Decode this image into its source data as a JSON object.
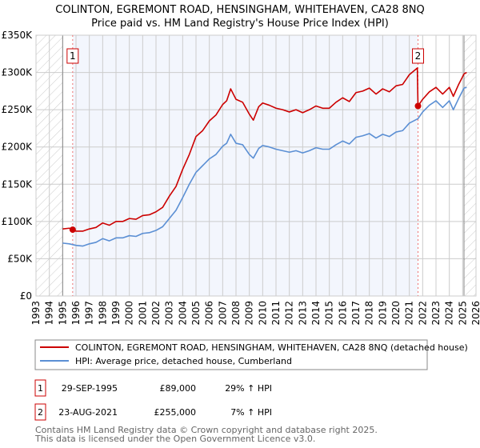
{
  "chart_data": {
    "type": "line",
    "title": "COLINTON, EGREMONT ROAD, HENSINGHAM, WHITEHAVEN, CA28 8NQ",
    "subtitle": "Price paid vs. HM Land Registry's House Price Index (HPI)",
    "xlabel": "",
    "ylabel": "",
    "xlim": [
      1993,
      2026
    ],
    "ylim": [
      0,
      350000
    ],
    "x_ticks": [
      "1993",
      "1994",
      "1995",
      "1996",
      "1997",
      "1998",
      "1999",
      "2000",
      "2001",
      "2002",
      "2003",
      "2004",
      "2005",
      "2006",
      "2007",
      "2008",
      "2009",
      "2010",
      "2011",
      "2012",
      "2013",
      "2014",
      "2015",
      "2016",
      "2017",
      "2018",
      "2019",
      "2020",
      "2021",
      "2022",
      "2023",
      "2024",
      "2025",
      "2026"
    ],
    "y_ticks": [
      {
        "value": 0,
        "label": "£0"
      },
      {
        "value": 50000,
        "label": "£50K"
      },
      {
        "value": 100000,
        "label": "£100K"
      },
      {
        "value": 150000,
        "label": "£150K"
      },
      {
        "value": 200000,
        "label": "£200K"
      },
      {
        "value": 250000,
        "label": "£250K"
      },
      {
        "value": 300000,
        "label": "£300K"
      },
      {
        "value": 350000,
        "label": "£350K"
      }
    ],
    "grid": true,
    "hatched_ranges": [
      [
        1993,
        1995
      ],
      [
        2025.1,
        2026
      ]
    ],
    "shaded_range": [
      1995.75,
      2021.65
    ],
    "series": [
      {
        "name": "COLINTON, EGREMONT ROAD, HENSINGHAM, WHITEHAVEN, CA28 8NQ (detached house)",
        "color": "#cc0000",
        "x": [
          1995,
          1995.5,
          1995.75,
          1996,
          1996.5,
          1997,
          1997.5,
          1998,
          1998.5,
          1999,
          1999.5,
          2000,
          2000.5,
          2001,
          2001.5,
          2002,
          2002.5,
          2003,
          2003.5,
          2004,
          2004.5,
          2005,
          2005.5,
          2006,
          2006.5,
          2007,
          2007.3,
          2007.6,
          2008,
          2008.5,
          2009,
          2009.3,
          2009.7,
          2010,
          2010.5,
          2011,
          2011.5,
          2012,
          2012.5,
          2013,
          2013.5,
          2014,
          2014.5,
          2015,
          2015.5,
          2016,
          2016.5,
          2017,
          2017.5,
          2018,
          2018.5,
          2019,
          2019.5,
          2020,
          2020.5,
          2021,
          2021.6,
          2021.65,
          2022,
          2022.5,
          2023,
          2023.5,
          2024,
          2024.3,
          2024.7,
          2025.1,
          2025.3
        ],
        "y": [
          90,
          91,
          89,
          87,
          87,
          90,
          92,
          98,
          95,
          100,
          100,
          104,
          103,
          108,
          109,
          113,
          119,
          134,
          147,
          170,
          190,
          214,
          222,
          235,
          243,
          257,
          262,
          278,
          264,
          260,
          244,
          236,
          254,
          259,
          256,
          252,
          250,
          247,
          250,
          246,
          250,
          255,
          252,
          252,
          260,
          266,
          261,
          273,
          275,
          279,
          271,
          278,
          274,
          282,
          284,
          297,
          306,
          255,
          264,
          274,
          280,
          271,
          280,
          268,
          284,
          298,
          300
        ],
        "y_unit": "thousand GBP"
      },
      {
        "name": "HPI: Average price, detached house, Cumberland",
        "color": "#5b8fd4",
        "x": [
          1995,
          1995.5,
          1996,
          1996.5,
          1997,
          1997.5,
          1998,
          1998.5,
          1999,
          1999.5,
          2000,
          2000.5,
          2001,
          2001.5,
          2002,
          2002.5,
          2003,
          2003.5,
          2004,
          2004.5,
          2005,
          2005.5,
          2006,
          2006.5,
          2007,
          2007.3,
          2007.6,
          2008,
          2008.5,
          2009,
          2009.3,
          2009.7,
          2010,
          2010.5,
          2011,
          2011.5,
          2012,
          2012.5,
          2013,
          2013.5,
          2014,
          2014.5,
          2015,
          2015.5,
          2016,
          2016.5,
          2017,
          2017.5,
          2018,
          2018.5,
          2019,
          2019.5,
          2020,
          2020.5,
          2021,
          2021.65,
          2022,
          2022.5,
          2023,
          2023.5,
          2024,
          2024.3,
          2024.7,
          2025.1,
          2025.3
        ],
        "y": [
          71,
          70,
          68,
          67,
          70,
          72,
          77,
          74,
          78,
          78,
          81,
          80,
          84,
          85,
          88,
          93,
          104,
          115,
          132,
          150,
          166,
          175,
          184,
          190,
          201,
          205,
          217,
          205,
          203,
          190,
          185,
          198,
          202,
          200,
          197,
          195,
          193,
          195,
          192,
          195,
          199,
          197,
          197,
          203,
          208,
          204,
          213,
          215,
          218,
          212,
          217,
          214,
          220,
          222,
          232,
          238,
          247,
          256,
          262,
          253,
          262,
          250,
          265,
          279,
          280
        ],
        "y_unit": "thousand GBP"
      }
    ],
    "sales": [
      {
        "marker": "1",
        "date": "29-SEP-1995",
        "x": 1995.75,
        "price": "£89,000",
        "value": 89,
        "hpi_change": "29% ↑ HPI"
      },
      {
        "marker": "2",
        "date": "23-AUG-2021",
        "x": 2021.65,
        "price": "£255,000",
        "value": 255,
        "hpi_change": "7% ↑ HPI"
      }
    ],
    "legend_placement": "bottom"
  },
  "footer": {
    "line1": "Contains HM Land Registry data © Crown copyright and database right 2025.",
    "line2": "This data is licensed under the Open Government Licence v3.0."
  }
}
